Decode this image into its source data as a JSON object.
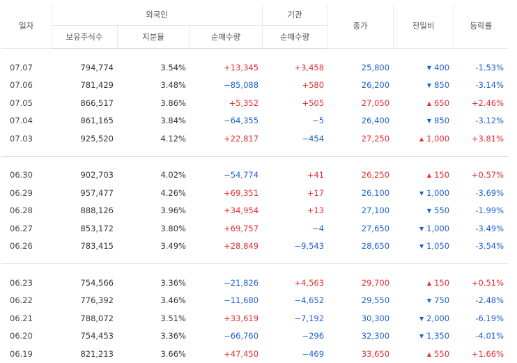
{
  "header": {
    "date": "일자",
    "foreign": "외국인",
    "institution": "기관",
    "close": "종가",
    "change": "전일비",
    "rate": "등락률",
    "holding": "보유주식수",
    "share": "지분율",
    "net_foreign": "순매수량",
    "net_inst": "순매수량"
  },
  "colors": {
    "up": "#e52d2d",
    "down": "#1d5fd1"
  },
  "groups": [
    [
      {
        "date": "07.07",
        "holding": "794,774",
        "share": "3.54%",
        "foreign_net": "+13,345",
        "inst_net": "+3,458",
        "close": "25,800",
        "dir": "down",
        "change": "400",
        "rate": "-1.53%"
      },
      {
        "date": "07.06",
        "holding": "781,429",
        "share": "3.48%",
        "foreign_net": "−85,088",
        "inst_net": "+580",
        "close": "26,200",
        "dir": "down",
        "change": "850",
        "rate": "-3.14%"
      },
      {
        "date": "07.05",
        "holding": "866,517",
        "share": "3.86%",
        "foreign_net": "+5,352",
        "inst_net": "+505",
        "close": "27,050",
        "dir": "up",
        "change": "650",
        "rate": "+2.46%"
      },
      {
        "date": "07.04",
        "holding": "861,165",
        "share": "3.84%",
        "foreign_net": "−64,355",
        "inst_net": "−5",
        "close": "26,400",
        "dir": "down",
        "change": "850",
        "rate": "-3.12%"
      },
      {
        "date": "07.03",
        "holding": "925,520",
        "share": "4.12%",
        "foreign_net": "+22,817",
        "inst_net": "−454",
        "close": "27,250",
        "dir": "up",
        "change": "1,000",
        "rate": "+3.81%"
      }
    ],
    [
      {
        "date": "06.30",
        "holding": "902,703",
        "share": "4.02%",
        "foreign_net": "−54,774",
        "inst_net": "+41",
        "close": "26,250",
        "dir": "up",
        "change": "150",
        "rate": "+0.57%"
      },
      {
        "date": "06.29",
        "holding": "957,477",
        "share": "4.26%",
        "foreign_net": "+69,351",
        "inst_net": "+17",
        "close": "26,100",
        "dir": "down",
        "change": "1,000",
        "rate": "-3.69%"
      },
      {
        "date": "06.28",
        "holding": "888,126",
        "share": "3.96%",
        "foreign_net": "+34,954",
        "inst_net": "+13",
        "close": "27,100",
        "dir": "down",
        "change": "550",
        "rate": "-1.99%"
      },
      {
        "date": "06.27",
        "holding": "853,172",
        "share": "3.80%",
        "foreign_net": "+69,757",
        "inst_net": "−4",
        "close": "27,650",
        "dir": "down",
        "change": "1,000",
        "rate": "-3.49%"
      },
      {
        "date": "06.26",
        "holding": "783,415",
        "share": "3.49%",
        "foreign_net": "+28,849",
        "inst_net": "−9,543",
        "close": "28,650",
        "dir": "down",
        "change": "1,050",
        "rate": "-3.54%"
      }
    ],
    [
      {
        "date": "06.23",
        "holding": "754,566",
        "share": "3.36%",
        "foreign_net": "−21,826",
        "inst_net": "+4,563",
        "close": "29,700",
        "dir": "up",
        "change": "150",
        "rate": "+0.51%"
      },
      {
        "date": "06.22",
        "holding": "776,392",
        "share": "3.46%",
        "foreign_net": "−11,680",
        "inst_net": "−4,652",
        "close": "29,550",
        "dir": "down",
        "change": "750",
        "rate": "-2.48%"
      },
      {
        "date": "06.21",
        "holding": "788,072",
        "share": "3.51%",
        "foreign_net": "+33,619",
        "inst_net": "−7,192",
        "close": "30,300",
        "dir": "down",
        "change": "2,000",
        "rate": "-6.19%"
      },
      {
        "date": "06.20",
        "holding": "754,453",
        "share": "3.36%",
        "foreign_net": "−66,760",
        "inst_net": "−296",
        "close": "32,300",
        "dir": "down",
        "change": "1,350",
        "rate": "-4.01%"
      },
      {
        "date": "06.19",
        "holding": "821,213",
        "share": "3.66%",
        "foreign_net": "+47,450",
        "inst_net": "−469",
        "close": "33,650",
        "dir": "up",
        "change": "550",
        "rate": "+1.66%"
      }
    ]
  ]
}
